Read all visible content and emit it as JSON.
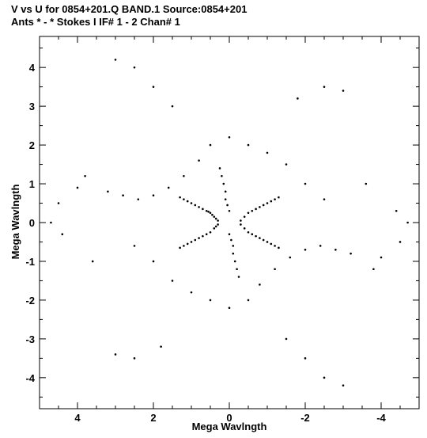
{
  "header": {
    "line1": "V vs U for 0854+201.Q BAND.1   Source:0854+201",
    "line2": "Ants * - *     Stokes I  IF# 1 - 2  Chan# 1"
  },
  "chart_data": {
    "type": "scatter",
    "title": "V vs U for 0854+201.Q BAND.1   Source:0854+201",
    "subtitle": "Ants * - *     Stokes I  IF# 1 - 2  Chan# 1",
    "xlabel": "Mega Wavlngth",
    "ylabel": "Mega Wavlngth",
    "xlim": [
      5.0,
      -5.0
    ],
    "ylim": [
      -4.8,
      4.8
    ],
    "x_reversed": true,
    "xticks": [
      4,
      2,
      0,
      -2,
      -4
    ],
    "xtick_labels": [
      "4",
      "2",
      "0",
      "-2",
      "-4"
    ],
    "yticks": [
      -4,
      -3,
      -2,
      -1,
      0,
      1,
      2,
      3,
      4
    ],
    "ytick_labels": [
      "-4",
      "-3",
      "-2",
      "-1",
      "0",
      "1",
      "2",
      "3",
      "4"
    ],
    "grid": false,
    "legend": "none",
    "point_color": "#000000",
    "description_symmetry": "point-symmetric",
    "series": [
      {
        "points": [
          [
            0.3,
            0.05
          ],
          [
            0.35,
            0.1
          ],
          [
            0.4,
            0.15
          ],
          [
            0.45,
            0.2
          ],
          [
            0.5,
            0.25
          ],
          [
            0.55,
            0.28
          ],
          [
            0.6,
            0.3
          ],
          [
            0.7,
            0.35
          ],
          [
            0.8,
            0.4
          ],
          [
            0.9,
            0.45
          ],
          [
            1.0,
            0.5
          ],
          [
            1.1,
            0.55
          ],
          [
            1.2,
            0.6
          ],
          [
            1.3,
            0.65
          ],
          [
            0.3,
            -0.05
          ],
          [
            0.35,
            -0.1
          ],
          [
            0.4,
            -0.15
          ],
          [
            0.5,
            -0.25
          ],
          [
            0.6,
            -0.3
          ],
          [
            0.7,
            -0.35
          ],
          [
            0.8,
            -0.4
          ],
          [
            0.9,
            -0.45
          ],
          [
            1.0,
            -0.5
          ],
          [
            1.1,
            -0.55
          ],
          [
            1.2,
            -0.6
          ],
          [
            1.3,
            -0.65
          ],
          [
            -0.3,
            0.05
          ],
          [
            -0.4,
            0.15
          ],
          [
            -0.5,
            0.25
          ],
          [
            -0.6,
            0.3
          ],
          [
            -0.7,
            0.35
          ],
          [
            -0.8,
            0.4
          ],
          [
            -0.9,
            0.45
          ],
          [
            -1.0,
            0.5
          ],
          [
            -1.1,
            0.55
          ],
          [
            -1.2,
            0.6
          ],
          [
            -1.3,
            0.65
          ],
          [
            -0.3,
            -0.05
          ],
          [
            -0.4,
            -0.15
          ],
          [
            -0.5,
            -0.25
          ],
          [
            -0.6,
            -0.3
          ],
          [
            -0.7,
            -0.35
          ],
          [
            -0.8,
            -0.4
          ],
          [
            -0.9,
            -0.45
          ],
          [
            -1.0,
            -0.5
          ],
          [
            -1.1,
            -0.55
          ],
          [
            -1.2,
            -0.6
          ],
          [
            -1.3,
            -0.65
          ],
          [
            0.0,
            0.3
          ],
          [
            0.05,
            0.45
          ],
          [
            0.1,
            0.6
          ],
          [
            0.1,
            0.8
          ],
          [
            0.15,
            1.0
          ],
          [
            0.2,
            1.2
          ],
          [
            0.25,
            1.4
          ],
          [
            0.0,
            -0.3
          ],
          [
            -0.05,
            -0.45
          ],
          [
            -0.1,
            -0.6
          ],
          [
            -0.1,
            -0.8
          ],
          [
            -0.15,
            -1.0
          ],
          [
            -0.2,
            -1.2
          ],
          [
            -0.25,
            -1.4
          ],
          [
            0.8,
            1.6
          ],
          [
            1.2,
            1.2
          ],
          [
            1.6,
            0.9
          ],
          [
            2.0,
            0.7
          ],
          [
            2.4,
            0.6
          ],
          [
            2.8,
            0.7
          ],
          [
            3.2,
            0.8
          ],
          [
            -0.8,
            -1.6
          ],
          [
            -1.2,
            -1.2
          ],
          [
            -1.6,
            -0.9
          ],
          [
            -2.0,
            -0.7
          ],
          [
            -2.4,
            -0.6
          ],
          [
            -2.8,
            -0.7
          ],
          [
            -3.2,
            -0.8
          ],
          [
            0.5,
            2.0
          ],
          [
            0.0,
            2.2
          ],
          [
            -0.5,
            2.0
          ],
          [
            -1.0,
            1.8
          ],
          [
            -1.5,
            1.5
          ],
          [
            -2.0,
            1.0
          ],
          [
            -2.5,
            0.6
          ],
          [
            -0.5,
            -2.0
          ],
          [
            0.0,
            -2.2
          ],
          [
            0.5,
            -2.0
          ],
          [
            1.0,
            -1.8
          ],
          [
            1.5,
            -1.5
          ],
          [
            2.0,
            -1.0
          ],
          [
            2.5,
            -0.6
          ],
          [
            1.5,
            3.0
          ],
          [
            2.0,
            3.5
          ],
          [
            2.5,
            4.0
          ],
          [
            3.0,
            4.2
          ],
          [
            -1.5,
            -3.0
          ],
          [
            -2.0,
            -3.5
          ],
          [
            -2.5,
            -4.0
          ],
          [
            -3.0,
            -4.2
          ],
          [
            -1.8,
            3.2
          ],
          [
            -2.5,
            3.5
          ],
          [
            -3.0,
            3.4
          ],
          [
            1.8,
            -3.2
          ],
          [
            2.5,
            -3.5
          ],
          [
            3.0,
            -3.4
          ],
          [
            4.5,
            0.5
          ],
          [
            4.7,
            0.0
          ],
          [
            4.4,
            -0.3
          ],
          [
            -4.5,
            -0.5
          ],
          [
            -4.7,
            0.0
          ],
          [
            -4.4,
            0.3
          ],
          [
            3.8,
            1.2
          ],
          [
            4.0,
            0.9
          ],
          [
            -3.8,
            -1.2
          ],
          [
            -4.0,
            -0.9
          ],
          [
            3.6,
            -1.0
          ],
          [
            -3.6,
            1.0
          ]
        ]
      }
    ]
  }
}
